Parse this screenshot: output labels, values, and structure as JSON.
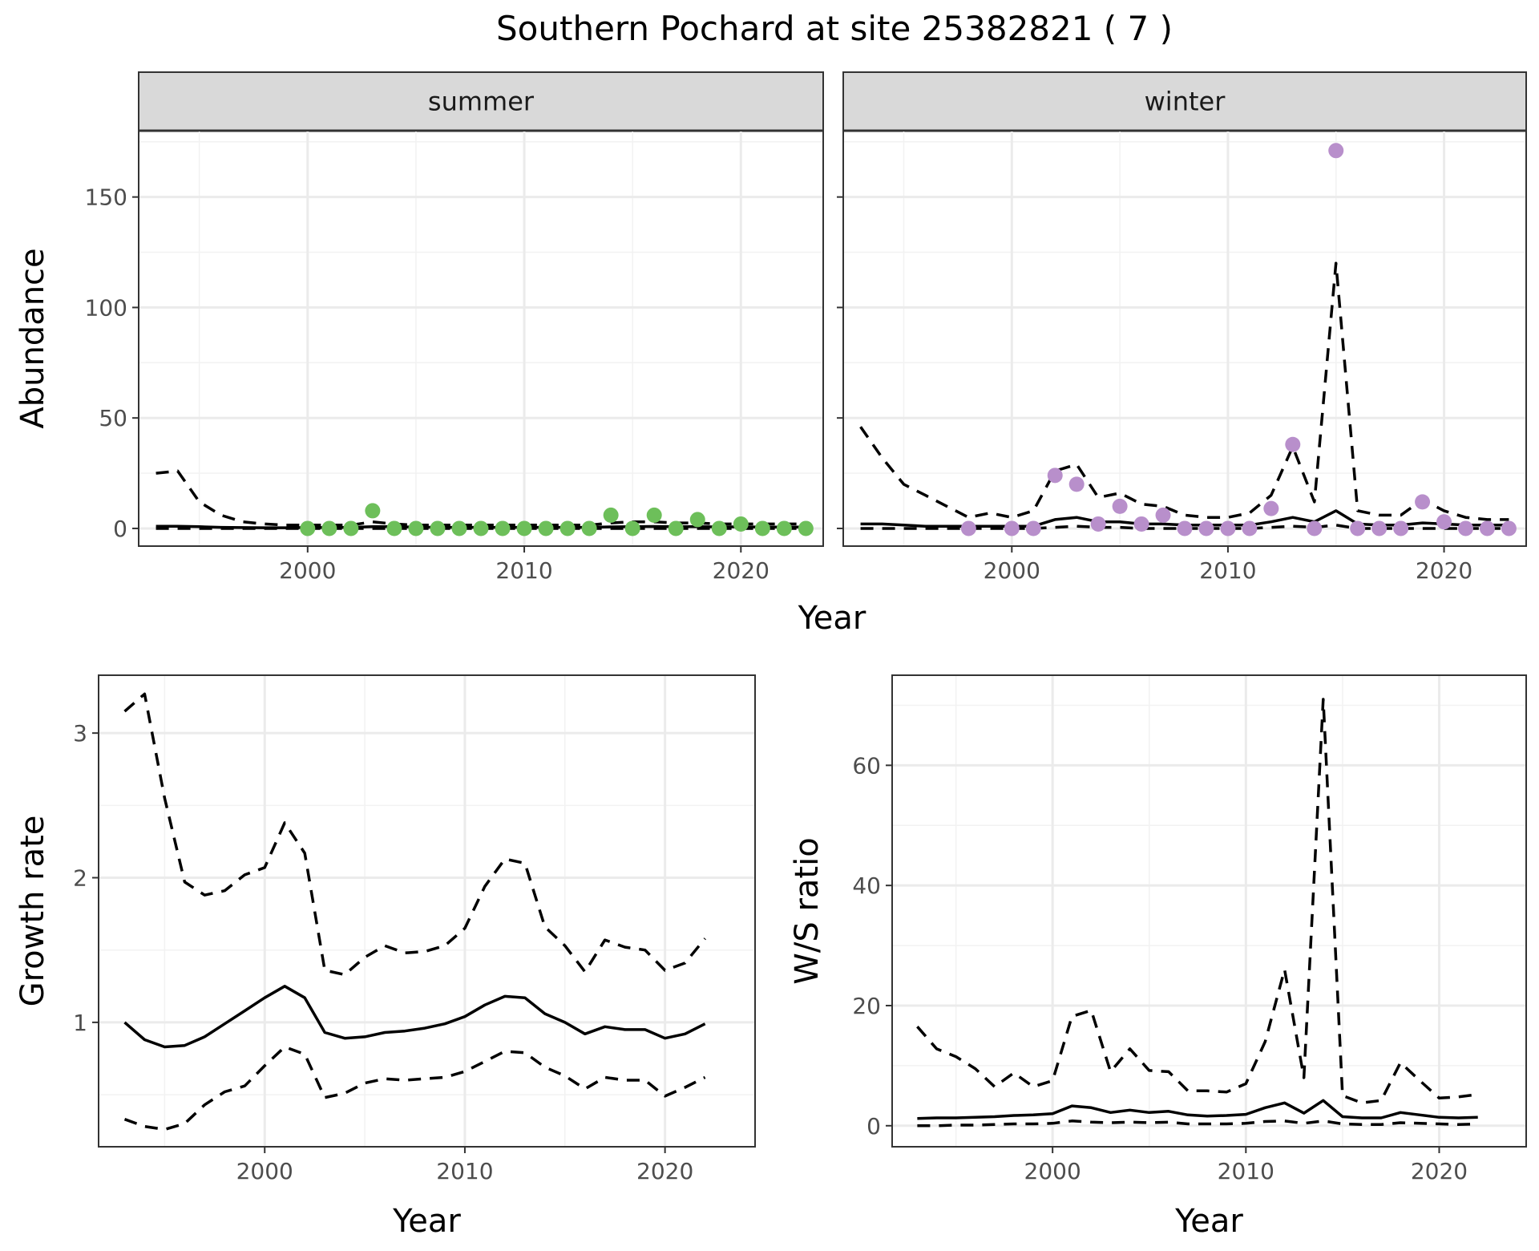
{
  "figure": {
    "title": "Southern Pochard at site 25382821 ( 7 )"
  },
  "chart_data": [
    {
      "id": "abundance-summer",
      "type": "line",
      "facet": "summer",
      "title": "",
      "xlabel": "Year",
      "ylabel": "Abundance",
      "xlim": [
        1992.2,
        2023.8
      ],
      "ylim": [
        -8,
        180
      ],
      "x_ticks": [
        2000,
        2010,
        2020
      ],
      "y_ticks": [
        0,
        50,
        100,
        150
      ],
      "grid": true,
      "point_color": "#6dbf5a",
      "series": [
        {
          "role": "mean",
          "style": "solid",
          "x": [
            1993,
            1994,
            1995,
            1996,
            1997,
            1998,
            1999,
            2000,
            2001,
            2002,
            2003,
            2004,
            2005,
            2006,
            2007,
            2008,
            2009,
            2010,
            2011,
            2012,
            2013,
            2014,
            2015,
            2016,
            2017,
            2018,
            2019,
            2020,
            2021,
            2022,
            2023
          ],
          "y": [
            1,
            1,
            0.8,
            0.5,
            0.4,
            0.3,
            0.3,
            0.4,
            0.4,
            0.5,
            0.8,
            0.8,
            0.6,
            0.5,
            0.5,
            0.5,
            0.5,
            0.5,
            0.5,
            0.5,
            0.5,
            0.7,
            0.8,
            0.9,
            0.8,
            0.8,
            0.7,
            0.7,
            0.6,
            0.6,
            0.6
          ]
        },
        {
          "role": "upper",
          "style": "dashed",
          "x": [
            1993,
            1994,
            1995,
            1996,
            1997,
            1998,
            1999,
            2000,
            2001,
            2002,
            2003,
            2004,
            2005,
            2006,
            2007,
            2008,
            2009,
            2010,
            2011,
            2012,
            2013,
            2014,
            2015,
            2016,
            2017,
            2018,
            2019,
            2020,
            2021,
            2022,
            2023
          ],
          "y": [
            25,
            26,
            12,
            6,
            3,
            2,
            1.5,
            1.5,
            1.5,
            1.5,
            3,
            2,
            1.5,
            1.5,
            1.5,
            1.5,
            1.5,
            1.5,
            1.5,
            1.5,
            1.5,
            2.5,
            3,
            3,
            2.5,
            2.5,
            2,
            2,
            2,
            2,
            2
          ]
        },
        {
          "role": "lower",
          "style": "dashed",
          "x": [
            1993,
            1994,
            1995,
            1996,
            1997,
            1998,
            1999,
            2000,
            2001,
            2002,
            2003,
            2004,
            2005,
            2006,
            2007,
            2008,
            2009,
            2010,
            2011,
            2012,
            2013,
            2014,
            2015,
            2016,
            2017,
            2018,
            2019,
            2020,
            2021,
            2022,
            2023
          ],
          "y": [
            0,
            0,
            0,
            0,
            0,
            0,
            0,
            0,
            0,
            0,
            0,
            0,
            0,
            0,
            0,
            0,
            0,
            0,
            0,
            0,
            0,
            0,
            0,
            0,
            0,
            0,
            0,
            0,
            0,
            0,
            0
          ]
        },
        {
          "role": "observed",
          "style": "points",
          "x": [
            2000,
            2001,
            2002,
            2003,
            2004,
            2005,
            2006,
            2007,
            2008,
            2009,
            2010,
            2011,
            2012,
            2013,
            2014,
            2015,
            2016,
            2017,
            2018,
            2019,
            2020,
            2021,
            2022,
            2023
          ],
          "y": [
            0,
            0,
            0,
            8,
            0,
            0,
            0,
            0,
            0,
            0,
            0,
            0,
            0,
            0,
            6,
            0,
            6,
            0,
            4,
            0,
            2,
            0,
            0,
            0
          ]
        }
      ]
    },
    {
      "id": "abundance-winter",
      "type": "line",
      "facet": "winter",
      "title": "",
      "xlabel": "Year",
      "ylabel": "Abundance",
      "xlim": [
        1992.2,
        2023.8
      ],
      "ylim": [
        -8,
        180
      ],
      "x_ticks": [
        2000,
        2010,
        2020
      ],
      "y_ticks": [
        0,
        50,
        100,
        150
      ],
      "grid": true,
      "point_color": "#b88fcb",
      "series": [
        {
          "role": "mean",
          "style": "solid",
          "x": [
            1993,
            1994,
            1995,
            1996,
            1997,
            1998,
            1999,
            2000,
            2001,
            2002,
            2003,
            2004,
            2005,
            2006,
            2007,
            2008,
            2009,
            2010,
            2011,
            2012,
            2013,
            2014,
            2015,
            2016,
            2017,
            2018,
            2019,
            2020,
            2021,
            2022,
            2023
          ],
          "y": [
            2,
            2,
            1.5,
            1,
            1,
            1,
            1,
            1,
            1,
            4,
            5,
            3,
            3,
            2,
            2,
            1.5,
            1.5,
            1.5,
            1.5,
            3,
            5,
            3,
            8,
            2,
            1.5,
            1.5,
            2.5,
            2,
            1.5,
            1.5,
            1.5
          ]
        },
        {
          "role": "upper",
          "style": "dashed",
          "x": [
            1993,
            1994,
            1995,
            1996,
            1997,
            1998,
            1999,
            2000,
            2001,
            2002,
            2003,
            2004,
            2005,
            2006,
            2007,
            2008,
            2009,
            2010,
            2011,
            2012,
            2013,
            2014,
            2015,
            2016,
            2017,
            2018,
            2019,
            2020,
            2021,
            2022,
            2023
          ],
          "y": [
            46,
            32,
            20,
            15,
            10,
            5,
            7,
            5,
            8,
            26,
            29,
            14,
            16,
            11,
            10,
            6,
            5,
            5,
            7,
            15,
            37,
            12,
            120,
            8,
            6,
            6,
            13,
            8,
            5,
            4,
            4
          ]
        },
        {
          "role": "lower",
          "style": "dashed",
          "x": [
            1993,
            1994,
            1995,
            1996,
            1997,
            1998,
            1999,
            2000,
            2001,
            2002,
            2003,
            2004,
            2005,
            2006,
            2007,
            2008,
            2009,
            2010,
            2011,
            2012,
            2013,
            2014,
            2015,
            2016,
            2017,
            2018,
            2019,
            2020,
            2021,
            2022,
            2023
          ],
          "y": [
            0,
            0,
            0,
            0,
            0,
            0,
            0,
            0,
            0,
            0.5,
            1,
            0.5,
            0.5,
            0,
            0,
            0,
            0,
            0,
            0,
            0.5,
            1,
            0.5,
            1.5,
            0,
            0,
            0,
            0,
            0,
            0,
            0,
            0
          ]
        },
        {
          "role": "observed",
          "style": "points",
          "x": [
            1998,
            2000,
            2001,
            2002,
            2003,
            2004,
            2005,
            2006,
            2007,
            2008,
            2009,
            2010,
            2011,
            2012,
            2013,
            2014,
            2015,
            2016,
            2017,
            2018,
            2019,
            2020,
            2021,
            2022,
            2023
          ],
          "y": [
            0,
            0,
            0,
            24,
            20,
            2,
            10,
            2,
            6,
            0,
            0,
            0,
            0,
            9,
            38,
            0,
            171,
            0,
            0,
            0,
            12,
            3,
            0,
            0,
            0
          ]
        }
      ]
    },
    {
      "id": "growth-rate",
      "type": "line",
      "title": "",
      "xlabel": "Year",
      "ylabel": "Growth rate",
      "xlim": [
        1991.7,
        2024.5
      ],
      "ylim": [
        0.14,
        3.4
      ],
      "x_ticks": [
        2000,
        2010,
        2020
      ],
      "y_ticks": [
        1,
        2,
        3
      ],
      "grid": true,
      "series": [
        {
          "role": "mean",
          "style": "solid",
          "x": [
            1993,
            1994,
            1995,
            1996,
            1997,
            1998,
            1999,
            2000,
            2001,
            2002,
            2003,
            2004,
            2005,
            2006,
            2007,
            2008,
            2009,
            2010,
            2011,
            2012,
            2013,
            2014,
            2015,
            2016,
            2017,
            2018,
            2019,
            2020,
            2021,
            2022
          ],
          "y": [
            1.0,
            0.88,
            0.83,
            0.84,
            0.9,
            0.99,
            1.08,
            1.17,
            1.25,
            1.17,
            0.93,
            0.89,
            0.9,
            0.93,
            0.94,
            0.96,
            0.99,
            1.04,
            1.12,
            1.18,
            1.17,
            1.06,
            1.0,
            0.92,
            0.97,
            0.95,
            0.95,
            0.89,
            0.92,
            0.99
          ]
        },
        {
          "role": "upper",
          "style": "dashed",
          "x": [
            1993,
            1994,
            1995,
            1996,
            1997,
            1998,
            1999,
            2000,
            2001,
            2002,
            2003,
            2004,
            2005,
            2006,
            2007,
            2008,
            2009,
            2010,
            2011,
            2012,
            2013,
            2014,
            2015,
            2016,
            2017,
            2018,
            2019,
            2020,
            2021,
            2022
          ],
          "y": [
            3.15,
            3.27,
            2.55,
            1.97,
            1.88,
            1.91,
            2.02,
            2.07,
            2.38,
            2.17,
            1.36,
            1.33,
            1.45,
            1.53,
            1.48,
            1.49,
            1.53,
            1.65,
            1.94,
            2.13,
            2.1,
            1.66,
            1.53,
            1.35,
            1.57,
            1.52,
            1.5,
            1.36,
            1.41,
            1.58
          ]
        },
        {
          "role": "lower",
          "style": "dashed",
          "x": [
            1993,
            1994,
            1995,
            1996,
            1997,
            1998,
            1999,
            2000,
            2001,
            2002,
            2003,
            2004,
            2005,
            2006,
            2007,
            2008,
            2009,
            2010,
            2011,
            2012,
            2013,
            2014,
            2015,
            2016,
            2017,
            2018,
            2019,
            2020,
            2021,
            2022
          ],
          "y": [
            0.33,
            0.28,
            0.26,
            0.3,
            0.43,
            0.52,
            0.56,
            0.7,
            0.83,
            0.78,
            0.48,
            0.51,
            0.58,
            0.61,
            0.6,
            0.61,
            0.62,
            0.66,
            0.73,
            0.8,
            0.79,
            0.69,
            0.63,
            0.54,
            0.62,
            0.6,
            0.6,
            0.49,
            0.55,
            0.62
          ]
        }
      ]
    },
    {
      "id": "ws-ratio",
      "type": "line",
      "title": "",
      "xlabel": "Year",
      "ylabel": "W/S ratio",
      "xlim": [
        1991.7,
        2024.5
      ],
      "ylim": [
        -3.5,
        75
      ],
      "x_ticks": [
        2000,
        2010,
        2020
      ],
      "y_ticks": [
        0,
        20,
        40,
        60
      ],
      "grid": true,
      "series": [
        {
          "role": "mean",
          "style": "solid",
          "x": [
            1993,
            1994,
            1995,
            1996,
            1997,
            1998,
            1999,
            2000,
            2001,
            2002,
            2003,
            2004,
            2005,
            2006,
            2007,
            2008,
            2009,
            2010,
            2011,
            2012,
            2013,
            2014,
            2015,
            2016,
            2017,
            2018,
            2019,
            2020,
            2021,
            2022
          ],
          "y": [
            1.2,
            1.3,
            1.3,
            1.4,
            1.5,
            1.7,
            1.8,
            2.0,
            3.3,
            3.0,
            2.2,
            2.6,
            2.2,
            2.4,
            1.8,
            1.6,
            1.7,
            1.9,
            3.0,
            3.8,
            2.1,
            4.2,
            1.5,
            1.3,
            1.3,
            2.2,
            1.8,
            1.4,
            1.3,
            1.4
          ]
        },
        {
          "role": "upper",
          "style": "dashed",
          "x": [
            1993,
            1994,
            1995,
            1996,
            1997,
            1998,
            1999,
            2000,
            2001,
            2002,
            2003,
            2004,
            2005,
            2006,
            2007,
            2008,
            2009,
            2010,
            2011,
            2012,
            2013,
            2014,
            2015,
            2016,
            2017,
            2018,
            2019,
            2020,
            2021,
            2022
          ],
          "y": [
            16.5,
            12.8,
            11.5,
            9.5,
            6.5,
            8.8,
            6.5,
            7.5,
            18.2,
            19.2,
            9.0,
            12.8,
            9.2,
            9.0,
            5.8,
            5.8,
            5.6,
            7.0,
            14.0,
            26.0,
            8.0,
            71.0,
            5.0,
            3.8,
            4.2,
            10.5,
            7.5,
            4.6,
            4.8,
            5.2
          ]
        },
        {
          "role": "lower",
          "style": "dashed",
          "x": [
            1993,
            1994,
            1995,
            1996,
            1997,
            1998,
            1999,
            2000,
            2001,
            2002,
            2003,
            2004,
            2005,
            2006,
            2007,
            2008,
            2009,
            2010,
            2011,
            2012,
            2013,
            2014,
            2015,
            2016,
            2017,
            2018,
            2019,
            2020,
            2021,
            2022
          ],
          "y": [
            0,
            0,
            0.1,
            0.1,
            0.2,
            0.3,
            0.3,
            0.4,
            0.8,
            0.6,
            0.5,
            0.6,
            0.5,
            0.6,
            0.3,
            0.3,
            0.3,
            0.4,
            0.7,
            0.8,
            0.4,
            0.8,
            0.3,
            0.2,
            0.2,
            0.5,
            0.4,
            0.3,
            0.2,
            0.3
          ]
        }
      ]
    }
  ]
}
